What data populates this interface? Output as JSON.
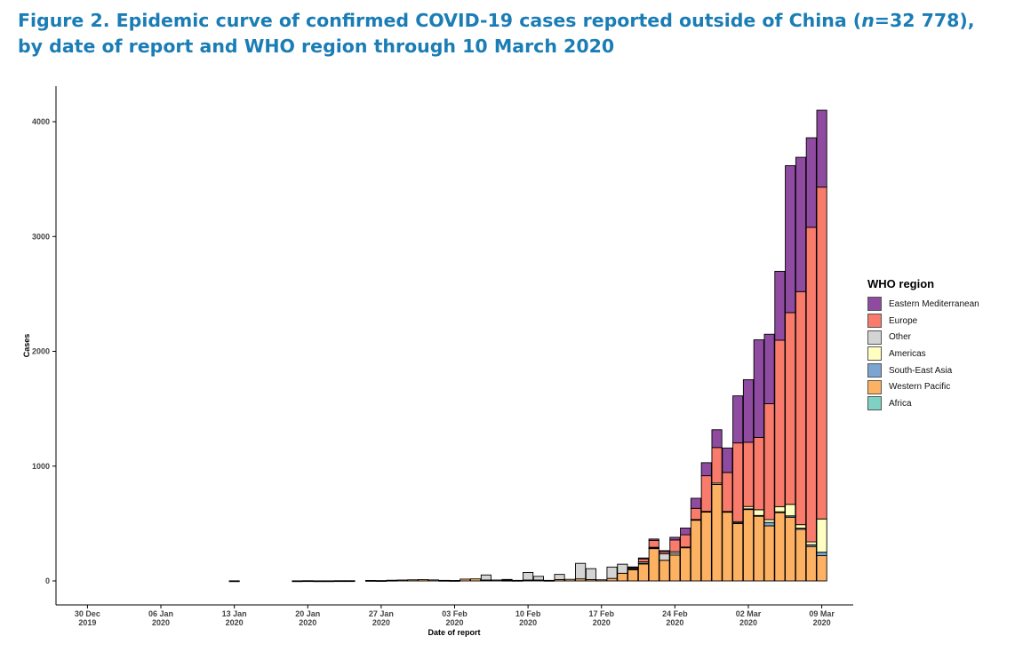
{
  "title": {
    "part1": "Figure 2. Epidemic curve of confirmed COVID-19 cases reported outside of China (",
    "n_symbol": "n",
    "part2": "=32 778), by date of report and WHO region through 10 March 2020"
  },
  "colors": {
    "Eastern Mediterranean": "#8e4ba0",
    "Europe": "#f97b6c",
    "Other": "#d4d4d4",
    "Americas": "#ffffc2",
    "South-East Asia": "#7ba6d1",
    "Western Pacific": "#fdb163",
    "Africa": "#7fd1c3"
  },
  "legend": {
    "title": "WHO region",
    "items": [
      {
        "label": "Eastern Mediterranean",
        "color": "#8e4ba0"
      },
      {
        "label": "Europe",
        "color": "#f97b6c"
      },
      {
        "label": "Other",
        "color": "#d4d4d4"
      },
      {
        "label": "Americas",
        "color": "#ffffc2"
      },
      {
        "label": "South-East Asia",
        "color": "#7ba6d1"
      },
      {
        "label": "Western Pacific",
        "color": "#fdb163"
      },
      {
        "label": "Africa",
        "color": "#7fd1c3"
      }
    ]
  },
  "chart_data": {
    "type": "bar",
    "stacked": true,
    "xlabel": "Date of report",
    "ylabel": "Cases",
    "ylim": [
      0,
      4200
    ],
    "yticks": [
      0,
      1000,
      2000,
      3000,
      4000
    ],
    "xlim": [
      "2019-12-27",
      "2020-03-12"
    ],
    "xticks": [
      {
        "date": "2019-12-30",
        "label": [
          "30 Dec",
          "2019"
        ]
      },
      {
        "date": "2020-01-06",
        "label": [
          "06 Jan",
          "2020"
        ]
      },
      {
        "date": "2020-01-13",
        "label": [
          "13 Jan",
          "2020"
        ]
      },
      {
        "date": "2020-01-20",
        "label": [
          "20 Jan",
          "2020"
        ]
      },
      {
        "date": "2020-01-27",
        "label": [
          "27 Jan",
          "2020"
        ]
      },
      {
        "date": "2020-02-03",
        "label": [
          "03 Feb",
          "2020"
        ]
      },
      {
        "date": "2020-02-10",
        "label": [
          "10 Feb",
          "2020"
        ]
      },
      {
        "date": "2020-02-17",
        "label": [
          "17 Feb",
          "2020"
        ]
      },
      {
        "date": "2020-02-24",
        "label": [
          "24 Feb",
          "2020"
        ]
      },
      {
        "date": "2020-03-02",
        "label": [
          "02 Mar",
          "2020"
        ]
      },
      {
        "date": "2020-03-09",
        "label": [
          "09 Mar",
          "2020"
        ]
      }
    ],
    "stack_order": [
      "Western Pacific",
      "South-East Asia",
      "Americas",
      "Other",
      "Europe",
      "Eastern Mediterranean"
    ],
    "grid": false,
    "legend_position": "right",
    "bars": [
      {
        "date": "2020-01-13",
        "Western Pacific": 1
      },
      {
        "date": "2020-01-19",
        "Western Pacific": 1
      },
      {
        "date": "2020-01-20",
        "Western Pacific": 2
      },
      {
        "date": "2020-01-21",
        "Western Pacific": 1
      },
      {
        "date": "2020-01-22",
        "Western Pacific": 1
      },
      {
        "date": "2020-01-23",
        "Western Pacific": 2
      },
      {
        "date": "2020-01-24",
        "Western Pacific": 2
      },
      {
        "date": "2020-01-26",
        "Western Pacific": 4
      },
      {
        "date": "2020-01-27",
        "Western Pacific": 3
      },
      {
        "date": "2020-01-28",
        "Western Pacific": 6
      },
      {
        "date": "2020-01-29",
        "Western Pacific": 8
      },
      {
        "date": "2020-01-30",
        "Western Pacific": 10
      },
      {
        "date": "2020-01-31",
        "Western Pacific": 12
      },
      {
        "date": "2020-02-01",
        "Western Pacific": 9
      },
      {
        "date": "2020-02-02",
        "Western Pacific": 5
      },
      {
        "date": "2020-02-03",
        "Western Pacific": 4
      },
      {
        "date": "2020-02-04",
        "Western Pacific": 16
      },
      {
        "date": "2020-02-05",
        "Western Pacific": 18
      },
      {
        "date": "2020-02-06",
        "Western Pacific": 8,
        "Other": 44
      },
      {
        "date": "2020-02-07",
        "Western Pacific": 8
      },
      {
        "date": "2020-02-08",
        "Western Pacific": 6,
        "Other": 7
      },
      {
        "date": "2020-02-09",
        "Western Pacific": 5
      },
      {
        "date": "2020-02-10",
        "Western Pacific": 8,
        "Other": 66
      },
      {
        "date": "2020-02-11",
        "Western Pacific": 8,
        "Other": 32
      },
      {
        "date": "2020-02-12",
        "Western Pacific": 5
      },
      {
        "date": "2020-02-13",
        "Western Pacific": 12,
        "Other": 45
      },
      {
        "date": "2020-02-14",
        "Western Pacific": 14
      },
      {
        "date": "2020-02-15",
        "Western Pacific": 18,
        "Other": 135
      },
      {
        "date": "2020-02-16",
        "Western Pacific": 12,
        "Other": 95
      },
      {
        "date": "2020-02-17",
        "Western Pacific": 10
      },
      {
        "date": "2020-02-18",
        "Western Pacific": 22,
        "Other": 99
      },
      {
        "date": "2020-02-19",
        "Western Pacific": 67,
        "Other": 79
      },
      {
        "date": "2020-02-20",
        "Western Pacific": 100,
        "Americas": 4,
        "Other": 11,
        "Europe": 5,
        "Eastern Mediterranean": 2
      },
      {
        "date": "2020-02-21",
        "Western Pacific": 151,
        "Americas": 3,
        "Other": 13,
        "Europe": 25,
        "Eastern Mediterranean": 8
      },
      {
        "date": "2020-02-22",
        "Western Pacific": 285,
        "Americas": 3,
        "Other": 5,
        "Europe": 60,
        "Eastern Mediterranean": 12
      },
      {
        "date": "2020-02-23",
        "Western Pacific": 180,
        "Other": 57,
        "Europe": 17,
        "Eastern Mediterranean": 10
      },
      {
        "date": "2020-02-24",
        "Western Pacific": 225,
        "Americas": 15,
        "Other": 15,
        "Europe": 102,
        "Eastern Mediterranean": 23
      },
      {
        "date": "2020-02-25",
        "Western Pacific": 290,
        "Americas": 5,
        "Europe": 107,
        "Eastern Mediterranean": 59
      },
      {
        "date": "2020-02-26",
        "Western Pacific": 530,
        "Americas": 5,
        "Europe": 97,
        "Eastern Mediterranean": 88
      },
      {
        "date": "2020-02-27",
        "Western Pacific": 600,
        "Americas": 6,
        "Europe": 310,
        "Eastern Mediterranean": 114
      },
      {
        "date": "2020-02-28",
        "Western Pacific": 840,
        "Americas": 12,
        "Europe": 310,
        "Eastern Mediterranean": 155
      },
      {
        "date": "2020-02-29",
        "Western Pacific": 600,
        "Americas": 5,
        "Europe": 340,
        "Eastern Mediterranean": 213
      },
      {
        "date": "2020-03-01",
        "Western Pacific": 500,
        "South-East Asia": 6,
        "Americas": 10,
        "Europe": 686,
        "Eastern Mediterranean": 410
      },
      {
        "date": "2020-03-02",
        "Western Pacific": 625,
        "South-East Asia": 3,
        "Americas": 20,
        "Europe": 560,
        "Eastern Mediterranean": 545
      },
      {
        "date": "2020-03-03",
        "Western Pacific": 565,
        "South-East Asia": 5,
        "Americas": 50,
        "Europe": 630,
        "Eastern Mediterranean": 850
      },
      {
        "date": "2020-03-04",
        "Western Pacific": 480,
        "South-East Asia": 29,
        "Americas": 25,
        "Europe": 1010,
        "Eastern Mediterranean": 605
      },
      {
        "date": "2020-03-05",
        "Western Pacific": 595,
        "South-East Asia": 7,
        "Americas": 45,
        "Europe": 1450,
        "Eastern Mediterranean": 600
      },
      {
        "date": "2020-03-06",
        "Western Pacific": 555,
        "South-East Asia": 12,
        "Americas": 100,
        "Europe": 1670,
        "Eastern Mediterranean": 1280
      },
      {
        "date": "2020-03-07",
        "Western Pacific": 450,
        "South-East Asia": 10,
        "Americas": 30,
        "Europe": 2030,
        "Eastern Mediterranean": 1170
      },
      {
        "date": "2020-03-08",
        "Western Pacific": 300,
        "South-East Asia": 15,
        "Americas": 25,
        "Europe": 2740,
        "Eastern Mediterranean": 780
      },
      {
        "date": "2020-03-09",
        "Western Pacific": 220,
        "South-East Asia": 30,
        "Americas": 290,
        "Europe": 2890,
        "Eastern Mediterranean": 670
      }
    ]
  }
}
